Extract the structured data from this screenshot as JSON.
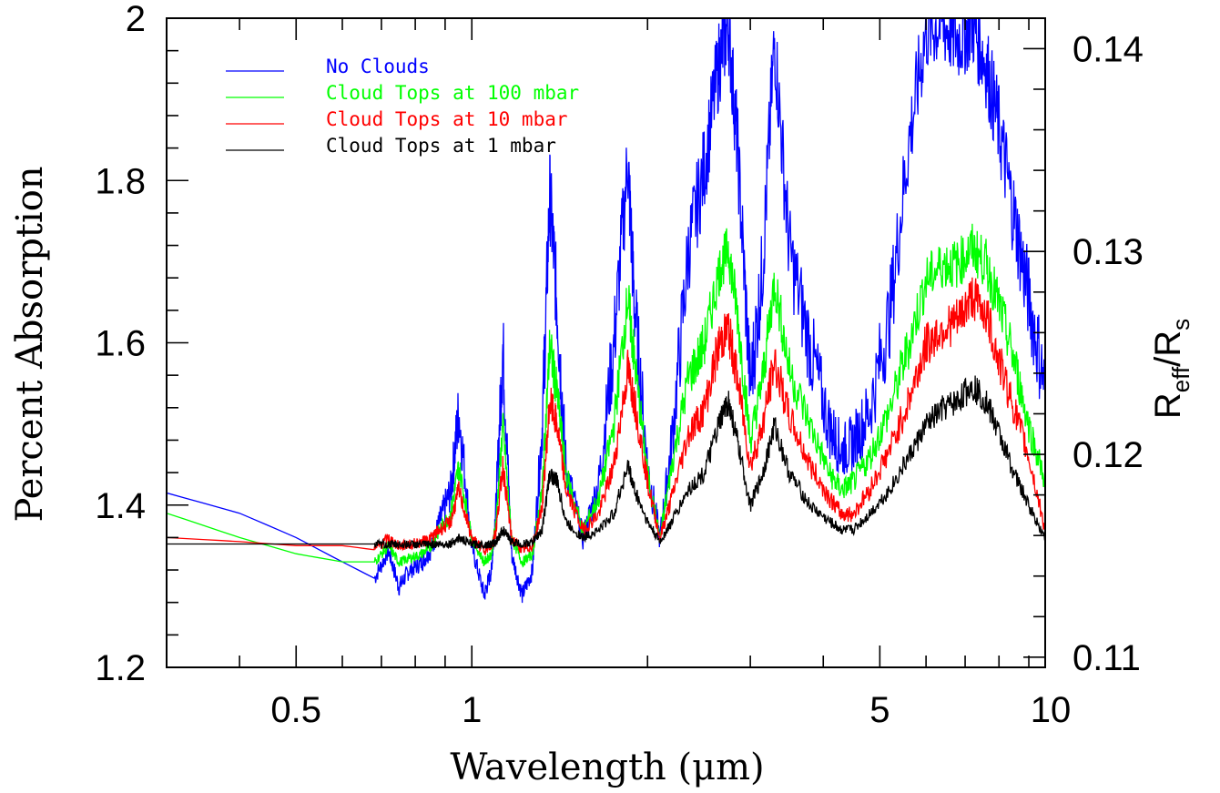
{
  "chart_data": {
    "type": "line",
    "xlabel": "Wavelength (μm)",
    "ylabel": "Percent Absorption",
    "y2label": {
      "main": "R",
      "sub1": "eff",
      "mid": "/R",
      "sub2": "s"
    },
    "xscale": "log",
    "xlim": [
      0.3,
      9.6
    ],
    "ylim": [
      1.2,
      2.0
    ],
    "y2lim": [
      0.1095,
      0.1415
    ],
    "x_ticks": [
      {
        "value": 0.5,
        "label": "0.5"
      },
      {
        "value": 1,
        "label": "1"
      },
      {
        "value": 5,
        "label": "5"
      },
      {
        "value": 10,
        "label": "10"
      }
    ],
    "y_ticks": [
      {
        "value": 1.2,
        "label": "1.2"
      },
      {
        "value": 1.4,
        "label": "1.4"
      },
      {
        "value": 1.6,
        "label": "1.6"
      },
      {
        "value": 1.8,
        "label": "1.8"
      },
      {
        "value": 2.0,
        "label": "2"
      }
    ],
    "y2_ticks": [
      {
        "value": 0.11,
        "label": "0.11"
      },
      {
        "value": 0.12,
        "label": "0.12"
      },
      {
        "value": 0.13,
        "label": "0.13"
      },
      {
        "value": 0.14,
        "label": "0.14"
      }
    ],
    "legend_position": "top-left",
    "grid": false,
    "series": [
      {
        "name": "No Clouds",
        "color": "#0000ff",
        "x": [
          0.3,
          0.4,
          0.5,
          0.6,
          0.68,
          0.72,
          0.75,
          0.78,
          0.82,
          0.85,
          0.88,
          0.92,
          0.95,
          1.0,
          1.05,
          1.08,
          1.1,
          1.13,
          1.17,
          1.22,
          1.27,
          1.32,
          1.36,
          1.4,
          1.45,
          1.55,
          1.65,
          1.75,
          1.85,
          1.9,
          2.0,
          2.1,
          2.2,
          2.35,
          2.5,
          2.65,
          2.75,
          2.85,
          3.0,
          3.15,
          3.3,
          3.5,
          3.8,
          4.1,
          4.3,
          4.5,
          4.8,
          5.2,
          5.6,
          6.0,
          6.4,
          6.8,
          7.2,
          7.6,
          8.0,
          8.5,
          9.0,
          9.6
        ],
        "y": [
          1.415,
          1.39,
          1.36,
          1.33,
          1.31,
          1.345,
          1.3,
          1.32,
          1.33,
          1.345,
          1.38,
          1.42,
          1.52,
          1.35,
          1.29,
          1.32,
          1.4,
          1.6,
          1.34,
          1.29,
          1.32,
          1.5,
          1.79,
          1.65,
          1.45,
          1.36,
          1.43,
          1.6,
          1.83,
          1.65,
          1.45,
          1.36,
          1.48,
          1.72,
          1.82,
          1.95,
          2.0,
          1.85,
          1.55,
          1.7,
          1.98,
          1.72,
          1.6,
          1.5,
          1.47,
          1.48,
          1.52,
          1.64,
          1.85,
          1.99,
          2.0,
          1.98,
          2.0,
          1.95,
          1.87,
          1.76,
          1.66,
          1.55
        ]
      },
      {
        "name": "Cloud Tops at 100 mbar",
        "color": "#00ff00",
        "x": [
          0.3,
          0.4,
          0.5,
          0.6,
          0.68,
          0.72,
          0.75,
          0.78,
          0.82,
          0.85,
          0.88,
          0.92,
          0.95,
          1.0,
          1.05,
          1.08,
          1.1,
          1.13,
          1.17,
          1.22,
          1.27,
          1.32,
          1.36,
          1.4,
          1.45,
          1.55,
          1.65,
          1.75,
          1.85,
          1.9,
          2.0,
          2.1,
          2.2,
          2.35,
          2.5,
          2.65,
          2.75,
          2.85,
          3.0,
          3.15,
          3.3,
          3.5,
          3.8,
          4.1,
          4.3,
          4.5,
          4.8,
          5.2,
          5.6,
          6.0,
          6.4,
          6.8,
          7.2,
          7.6,
          8.0,
          8.5,
          9.0,
          9.6
        ],
        "y": [
          1.39,
          1.36,
          1.34,
          1.33,
          1.33,
          1.35,
          1.33,
          1.335,
          1.34,
          1.35,
          1.37,
          1.39,
          1.45,
          1.36,
          1.33,
          1.34,
          1.38,
          1.5,
          1.36,
          1.33,
          1.34,
          1.42,
          1.6,
          1.54,
          1.44,
          1.37,
          1.41,
          1.5,
          1.66,
          1.58,
          1.44,
          1.36,
          1.45,
          1.56,
          1.6,
          1.69,
          1.72,
          1.64,
          1.48,
          1.56,
          1.68,
          1.57,
          1.5,
          1.44,
          1.42,
          1.43,
          1.46,
          1.52,
          1.6,
          1.68,
          1.7,
          1.7,
          1.72,
          1.7,
          1.65,
          1.58,
          1.5,
          1.43
        ]
      },
      {
        "name": "Cloud Tops at 10 mbar",
        "color": "#ff0000",
        "x": [
          0.3,
          0.4,
          0.5,
          0.6,
          0.68,
          0.72,
          0.75,
          0.78,
          0.82,
          0.85,
          0.88,
          0.92,
          0.95,
          1.0,
          1.05,
          1.08,
          1.1,
          1.13,
          1.17,
          1.22,
          1.27,
          1.32,
          1.36,
          1.4,
          1.45,
          1.55,
          1.65,
          1.75,
          1.85,
          1.9,
          2.0,
          2.1,
          2.2,
          2.35,
          2.5,
          2.65,
          2.75,
          2.85,
          3.0,
          3.15,
          3.3,
          3.5,
          3.8,
          4.1,
          4.3,
          4.5,
          4.8,
          5.2,
          5.6,
          6.0,
          6.4,
          6.8,
          7.2,
          7.6,
          8.0,
          8.5,
          9.0,
          9.6
        ],
        "y": [
          1.36,
          1.355,
          1.35,
          1.35,
          1.345,
          1.36,
          1.35,
          1.352,
          1.355,
          1.36,
          1.37,
          1.38,
          1.42,
          1.36,
          1.345,
          1.35,
          1.37,
          1.45,
          1.36,
          1.345,
          1.35,
          1.4,
          1.53,
          1.5,
          1.42,
          1.37,
          1.39,
          1.45,
          1.57,
          1.53,
          1.43,
          1.36,
          1.41,
          1.49,
          1.52,
          1.6,
          1.62,
          1.56,
          1.45,
          1.5,
          1.58,
          1.51,
          1.45,
          1.41,
          1.39,
          1.39,
          1.42,
          1.47,
          1.53,
          1.6,
          1.62,
          1.63,
          1.66,
          1.64,
          1.58,
          1.52,
          1.46,
          1.37
        ]
      },
      {
        "name": "Cloud Tops at 1 mbar",
        "color": "#000000",
        "x": [
          0.3,
          0.4,
          0.5,
          0.6,
          0.68,
          0.72,
          0.75,
          0.78,
          0.82,
          0.85,
          0.88,
          0.92,
          0.95,
          1.0,
          1.05,
          1.08,
          1.1,
          1.13,
          1.17,
          1.22,
          1.27,
          1.32,
          1.36,
          1.4,
          1.45,
          1.55,
          1.65,
          1.75,
          1.85,
          1.9,
          2.0,
          2.1,
          2.2,
          2.35,
          2.5,
          2.65,
          2.75,
          2.85,
          3.0,
          3.15,
          3.3,
          3.5,
          3.8,
          4.1,
          4.3,
          4.5,
          4.8,
          5.2,
          5.6,
          6.0,
          6.4,
          6.8,
          7.2,
          7.6,
          8.0,
          8.5,
          9.0,
          9.6
        ],
        "y": [
          1.352,
          1.352,
          1.352,
          1.352,
          1.352,
          1.352,
          1.352,
          1.352,
          1.352,
          1.352,
          1.352,
          1.353,
          1.36,
          1.352,
          1.352,
          1.352,
          1.355,
          1.37,
          1.355,
          1.352,
          1.355,
          1.37,
          1.44,
          1.43,
          1.38,
          1.36,
          1.37,
          1.39,
          1.45,
          1.42,
          1.38,
          1.355,
          1.38,
          1.42,
          1.44,
          1.5,
          1.53,
          1.48,
          1.4,
          1.44,
          1.5,
          1.44,
          1.4,
          1.38,
          1.37,
          1.37,
          1.39,
          1.42,
          1.46,
          1.5,
          1.52,
          1.53,
          1.55,
          1.53,
          1.49,
          1.44,
          1.4,
          1.36
        ]
      }
    ]
  }
}
